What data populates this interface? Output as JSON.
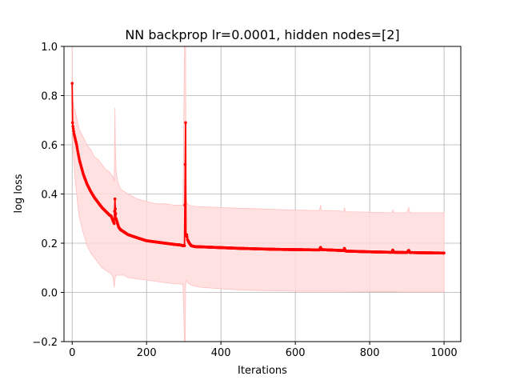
{
  "chart_data": {
    "type": "line",
    "title": "NN backprop lr=0.0001, hidden nodes=[2]",
    "xlabel": "Iterations",
    "ylabel": "log loss",
    "xlim": [
      -22,
      1045
    ],
    "ylim": [
      -0.2,
      1.0
    ],
    "x_ticks": [
      0,
      200,
      400,
      600,
      800,
      1000
    ],
    "x_tick_labels": [
      "0",
      "200",
      "400",
      "600",
      "800",
      "1000"
    ],
    "y_ticks": [
      -0.2,
      0.0,
      0.2,
      0.4,
      0.6,
      0.8,
      1.0
    ],
    "y_tick_labels": [
      "−0.2",
      "0.0",
      "0.2",
      "0.4",
      "0.6",
      "0.8",
      "1.0"
    ],
    "grid": true,
    "colors": {
      "line": "#ff0000",
      "band": "#ffdcdc",
      "band_edge": "#ffc0c0",
      "grid": "#b0b0b0"
    },
    "series": [
      {
        "x": [
          0,
          1,
          2,
          3,
          5,
          8,
          12,
          16,
          20,
          30,
          40,
          50,
          60,
          70,
          80,
          90,
          100,
          105,
          110,
          113,
          115,
          116,
          118,
          120,
          125,
          130,
          140,
          150,
          175,
          200,
          225,
          250,
          275,
          290,
          298,
          302,
          304,
          305,
          306,
          308,
          310,
          315,
          320,
          330,
          350,
          400,
          450,
          500,
          550,
          600,
          650,
          665,
          668,
          670,
          700,
          730,
          732,
          735,
          800,
          860,
          862,
          865,
          900,
          905,
          908,
          950,
          1000
        ],
        "y": [
          0.85,
          0.69,
          0.675,
          0.665,
          0.645,
          0.625,
          0.6,
          0.565,
          0.535,
          0.48,
          0.44,
          0.41,
          0.385,
          0.365,
          0.345,
          0.33,
          0.315,
          0.31,
          0.29,
          0.28,
          0.38,
          0.34,
          0.3,
          0.29,
          0.265,
          0.255,
          0.245,
          0.235,
          0.222,
          0.21,
          0.205,
          0.2,
          0.195,
          0.193,
          0.19,
          0.19,
          0.52,
          0.69,
          0.23,
          0.235,
          0.215,
          0.2,
          0.19,
          0.186,
          0.185,
          0.182,
          0.179,
          0.177,
          0.175,
          0.174,
          0.173,
          0.173,
          0.183,
          0.174,
          0.172,
          0.17,
          0.179,
          0.168,
          0.165,
          0.163,
          0.172,
          0.163,
          0.162,
          0.171,
          0.162,
          0.161,
          0.16
        ],
        "lower": [
          1.0,
          0.6,
          0.58,
          0.56,
          0.52,
          0.46,
          0.4,
          0.34,
          0.3,
          0.24,
          0.19,
          0.16,
          0.14,
          0.12,
          0.1,
          0.09,
          0.08,
          0.075,
          0.06,
          0.02,
          0.05,
          0.06,
          0.07,
          0.07,
          0.07,
          0.07,
          0.07,
          0.06,
          0.055,
          0.05,
          0.045,
          0.04,
          0.035,
          0.035,
          0.03,
          -0.2,
          -0.2,
          0.03,
          0.05,
          0.05,
          0.04,
          0.035,
          0.03,
          0.025,
          0.02,
          0.015,
          0.01,
          0.008,
          0.006,
          0.005,
          0.005,
          0.005,
          0.005,
          0.005,
          0.005,
          0.004,
          0.004,
          0.004,
          0.003,
          0.003,
          0.003,
          0.003,
          0.002,
          0.002,
          0.002,
          0.002,
          0.002
        ],
        "upper": [
          1.0,
          0.8,
          0.78,
          0.77,
          0.75,
          0.74,
          0.71,
          0.68,
          0.66,
          0.63,
          0.6,
          0.58,
          0.55,
          0.54,
          0.52,
          0.5,
          0.49,
          0.48,
          0.47,
          0.45,
          0.75,
          0.6,
          0.5,
          0.47,
          0.44,
          0.42,
          0.41,
          0.4,
          0.38,
          0.37,
          0.36,
          0.36,
          0.355,
          0.355,
          0.355,
          1.0,
          1.0,
          1.0,
          0.38,
          0.37,
          0.36,
          0.355,
          0.352,
          0.35,
          0.348,
          0.345,
          0.342,
          0.34,
          0.337,
          0.335,
          0.333,
          0.333,
          0.355,
          0.333,
          0.332,
          0.33,
          0.345,
          0.328,
          0.326,
          0.324,
          0.335,
          0.324,
          0.324,
          0.345,
          0.324,
          0.324,
          0.324
        ]
      }
    ]
  }
}
